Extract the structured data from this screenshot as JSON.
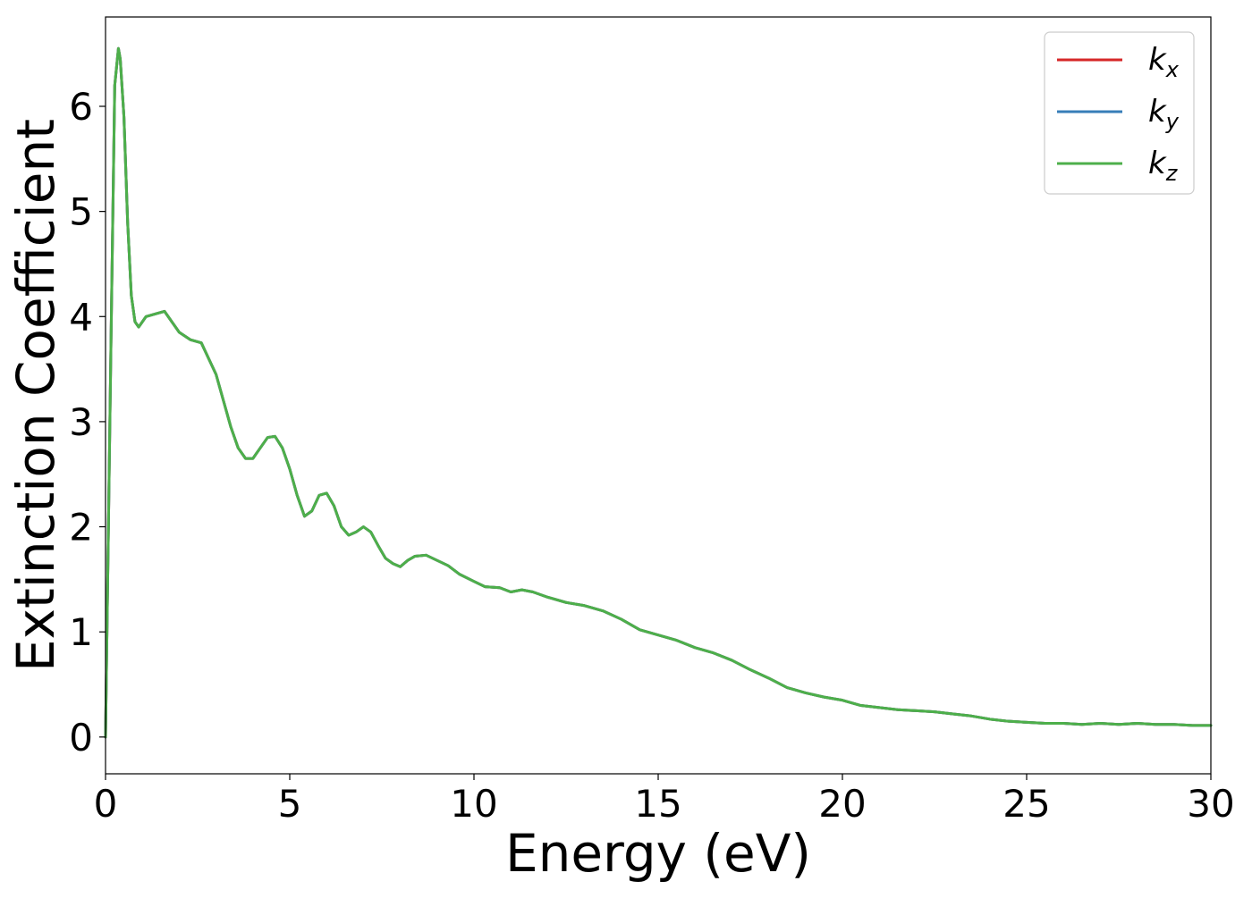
{
  "chart_data": {
    "type": "line",
    "xlabel": "Energy (eV)",
    "ylabel": "Extinction Coefficient",
    "xlim": [
      0,
      30
    ],
    "ylim": [
      -0.35,
      6.85
    ],
    "xticks": [
      0,
      5,
      10,
      15,
      20,
      25,
      30
    ],
    "yticks": [
      0,
      1,
      2,
      3,
      4,
      5,
      6
    ],
    "xtick_labels": [
      "0",
      "5",
      "10",
      "15",
      "20",
      "25",
      "30"
    ],
    "ytick_labels": [
      "0",
      "1",
      "2",
      "3",
      "4",
      "5",
      "6"
    ],
    "grid": false,
    "legend_position": "top-right",
    "series": [
      {
        "name": "k_x",
        "label_main": "k",
        "label_sub": "x",
        "color": "#d62728",
        "x": [
          0,
          0.15,
          0.25,
          0.35,
          0.4,
          0.5,
          0.6,
          0.7,
          0.8,
          0.9,
          1.0,
          1.1,
          1.3,
          1.6,
          1.8,
          2.0,
          2.3,
          2.6,
          2.8,
          3.0,
          3.2,
          3.4,
          3.6,
          3.8,
          4.0,
          4.2,
          4.4,
          4.6,
          4.8,
          5.0,
          5.2,
          5.4,
          5.6,
          5.8,
          6.0,
          6.2,
          6.4,
          6.6,
          6.8,
          7.0,
          7.2,
          7.4,
          7.6,
          7.8,
          8.0,
          8.2,
          8.4,
          8.7,
          9.0,
          9.3,
          9.6,
          10.0,
          10.3,
          10.7,
          11.0,
          11.3,
          11.6,
          12.0,
          12.5,
          13.0,
          13.5,
          14.0,
          14.5,
          15.0,
          15.5,
          16.0,
          16.5,
          17.0,
          17.5,
          18.0,
          18.5,
          19.0,
          19.5,
          20.0,
          20.5,
          21.0,
          21.5,
          22.0,
          22.5,
          23.0,
          23.5,
          24.0,
          24.5,
          25.0,
          25.5,
          26.0,
          26.5,
          27.0,
          27.5,
          28.0,
          28.5,
          29.0,
          29.5,
          30.0
        ],
        "y": [
          0.0,
          3.8,
          6.2,
          6.55,
          6.45,
          5.9,
          4.9,
          4.2,
          3.95,
          3.9,
          3.95,
          4.0,
          4.02,
          4.05,
          3.95,
          3.85,
          3.78,
          3.75,
          3.6,
          3.45,
          3.2,
          2.95,
          2.75,
          2.65,
          2.65,
          2.75,
          2.85,
          2.86,
          2.75,
          2.55,
          2.3,
          2.1,
          2.15,
          2.3,
          2.32,
          2.2,
          2.0,
          1.92,
          1.95,
          2.0,
          1.95,
          1.82,
          1.7,
          1.65,
          1.62,
          1.68,
          1.72,
          1.73,
          1.68,
          1.63,
          1.55,
          1.48,
          1.43,
          1.42,
          1.38,
          1.4,
          1.38,
          1.33,
          1.28,
          1.25,
          1.2,
          1.12,
          1.02,
          0.97,
          0.92,
          0.85,
          0.8,
          0.73,
          0.64,
          0.56,
          0.47,
          0.42,
          0.38,
          0.35,
          0.3,
          0.28,
          0.26,
          0.25,
          0.24,
          0.22,
          0.2,
          0.17,
          0.15,
          0.14,
          0.13,
          0.13,
          0.12,
          0.13,
          0.12,
          0.13,
          0.12,
          0.12,
          0.11,
          0.11
        ]
      },
      {
        "name": "k_y",
        "label_main": "k",
        "label_sub": "y",
        "color": "#377eb8",
        "x": [
          0,
          0.15,
          0.25,
          0.35,
          0.4,
          0.5,
          0.6,
          0.7,
          0.8,
          0.9,
          1.0,
          1.1,
          1.3,
          1.6,
          1.8,
          2.0,
          2.3,
          2.6,
          2.8,
          3.0,
          3.2,
          3.4,
          3.6,
          3.8,
          4.0,
          4.2,
          4.4,
          4.6,
          4.8,
          5.0,
          5.2,
          5.4,
          5.6,
          5.8,
          6.0,
          6.2,
          6.4,
          6.6,
          6.8,
          7.0,
          7.2,
          7.4,
          7.6,
          7.8,
          8.0,
          8.2,
          8.4,
          8.7,
          9.0,
          9.3,
          9.6,
          10.0,
          10.3,
          10.7,
          11.0,
          11.3,
          11.6,
          12.0,
          12.5,
          13.0,
          13.5,
          14.0,
          14.5,
          15.0,
          15.5,
          16.0,
          16.5,
          17.0,
          17.5,
          18.0,
          18.5,
          19.0,
          19.5,
          20.0,
          20.5,
          21.0,
          21.5,
          22.0,
          22.5,
          23.0,
          23.5,
          24.0,
          24.5,
          25.0,
          25.5,
          26.0,
          26.5,
          27.0,
          27.5,
          28.0,
          28.5,
          29.0,
          29.5,
          30.0
        ],
        "y": [
          0.0,
          3.8,
          6.2,
          6.55,
          6.45,
          5.9,
          4.9,
          4.2,
          3.95,
          3.9,
          3.95,
          4.0,
          4.02,
          4.05,
          3.95,
          3.85,
          3.78,
          3.75,
          3.6,
          3.45,
          3.2,
          2.95,
          2.75,
          2.65,
          2.65,
          2.75,
          2.85,
          2.86,
          2.75,
          2.55,
          2.3,
          2.1,
          2.15,
          2.3,
          2.32,
          2.2,
          2.0,
          1.92,
          1.95,
          2.0,
          1.95,
          1.82,
          1.7,
          1.65,
          1.62,
          1.68,
          1.72,
          1.73,
          1.68,
          1.63,
          1.55,
          1.48,
          1.43,
          1.42,
          1.38,
          1.4,
          1.38,
          1.33,
          1.28,
          1.25,
          1.2,
          1.12,
          1.02,
          0.97,
          0.92,
          0.85,
          0.8,
          0.73,
          0.64,
          0.56,
          0.47,
          0.42,
          0.38,
          0.35,
          0.3,
          0.28,
          0.26,
          0.25,
          0.24,
          0.22,
          0.2,
          0.17,
          0.15,
          0.14,
          0.13,
          0.13,
          0.12,
          0.13,
          0.12,
          0.13,
          0.12,
          0.12,
          0.11,
          0.11
        ]
      },
      {
        "name": "k_z",
        "label_main": "k",
        "label_sub": "z",
        "color": "#4daf4a",
        "x": [
          0,
          0.15,
          0.25,
          0.35,
          0.4,
          0.5,
          0.6,
          0.7,
          0.8,
          0.9,
          1.0,
          1.1,
          1.3,
          1.6,
          1.8,
          2.0,
          2.3,
          2.6,
          2.8,
          3.0,
          3.2,
          3.4,
          3.6,
          3.8,
          4.0,
          4.2,
          4.4,
          4.6,
          4.8,
          5.0,
          5.2,
          5.4,
          5.6,
          5.8,
          6.0,
          6.2,
          6.4,
          6.6,
          6.8,
          7.0,
          7.2,
          7.4,
          7.6,
          7.8,
          8.0,
          8.2,
          8.4,
          8.7,
          9.0,
          9.3,
          9.6,
          10.0,
          10.3,
          10.7,
          11.0,
          11.3,
          11.6,
          12.0,
          12.5,
          13.0,
          13.5,
          14.0,
          14.5,
          15.0,
          15.5,
          16.0,
          16.5,
          17.0,
          17.5,
          18.0,
          18.5,
          19.0,
          19.5,
          20.0,
          20.5,
          21.0,
          21.5,
          22.0,
          22.5,
          23.0,
          23.5,
          24.0,
          24.5,
          25.0,
          25.5,
          26.0,
          26.5,
          27.0,
          27.5,
          28.0,
          28.5,
          29.0,
          29.5,
          30.0
        ],
        "y": [
          0.0,
          3.8,
          6.2,
          6.55,
          6.45,
          5.9,
          4.9,
          4.2,
          3.95,
          3.9,
          3.95,
          4.0,
          4.02,
          4.05,
          3.95,
          3.85,
          3.78,
          3.75,
          3.6,
          3.45,
          3.2,
          2.95,
          2.75,
          2.65,
          2.65,
          2.75,
          2.85,
          2.86,
          2.75,
          2.55,
          2.3,
          2.1,
          2.15,
          2.3,
          2.32,
          2.2,
          2.0,
          1.92,
          1.95,
          2.0,
          1.95,
          1.82,
          1.7,
          1.65,
          1.62,
          1.68,
          1.72,
          1.73,
          1.68,
          1.63,
          1.55,
          1.48,
          1.43,
          1.42,
          1.38,
          1.4,
          1.38,
          1.33,
          1.28,
          1.25,
          1.2,
          1.12,
          1.02,
          0.97,
          0.92,
          0.85,
          0.8,
          0.73,
          0.64,
          0.56,
          0.47,
          0.42,
          0.38,
          0.35,
          0.3,
          0.28,
          0.26,
          0.25,
          0.24,
          0.22,
          0.2,
          0.17,
          0.15,
          0.14,
          0.13,
          0.13,
          0.12,
          0.13,
          0.12,
          0.13,
          0.12,
          0.12,
          0.11,
          0.11
        ]
      }
    ]
  }
}
